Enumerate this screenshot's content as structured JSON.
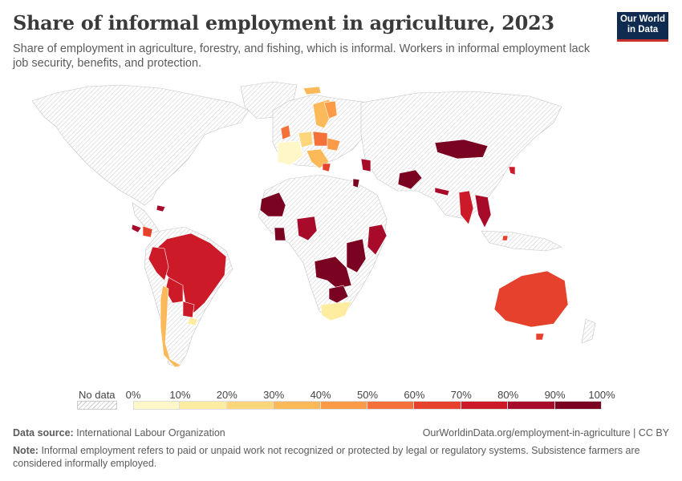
{
  "header": {
    "title": "Share of informal employment in agriculture, 2023",
    "subtitle": "Share of employment in agriculture, forestry, and fishing, which is informal. Workers in informal employment lack job security, benefits, and protection.",
    "logo_line1": "Our World",
    "logo_line2": "in Data"
  },
  "legend": {
    "nodata_label": "No data",
    "ticks": [
      "0%",
      "10%",
      "20%",
      "30%",
      "40%",
      "50%",
      "60%",
      "70%",
      "80%",
      "90%",
      "100%"
    ],
    "colors": [
      "#fff7c7",
      "#feeca0",
      "#fdd57a",
      "#fcb95a",
      "#fb9a47",
      "#f5713a",
      "#e6412d",
      "#cc1a28",
      "#a80b2a",
      "#7a0322"
    ]
  },
  "map_data": {
    "colors": {
      "nodata_fill": "#ffffff",
      "nodata_hatch": "#cfcfcf",
      "border": "#b9b9b9"
    },
    "regions": [
      {
        "name": "Brazil",
        "bin": 7
      },
      {
        "name": "Peru",
        "bin": 7
      },
      {
        "name": "Bolivia",
        "bin": 7
      },
      {
        "name": "Paraguay",
        "bin": 7
      },
      {
        "name": "Uruguay",
        "bin": 1
      },
      {
        "name": "Chile",
        "bin": 3
      },
      {
        "name": "Colombia",
        "bin": 6
      },
      {
        "name": "Costa Rica",
        "bin": 8
      },
      {
        "name": "Mali",
        "bin": 9
      },
      {
        "name": "Niger",
        "bin": 8
      },
      {
        "name": "Nigeria",
        "bin": 8
      },
      {
        "name": "Ghana",
        "bin": 9
      },
      {
        "name": "DR Congo",
        "bin": 9
      },
      {
        "name": "Tanzania",
        "bin": 9
      },
      {
        "name": "Zambia",
        "bin": 9
      },
      {
        "name": "Mozambique",
        "bin": 9
      },
      {
        "name": "Somalia",
        "bin": 8
      },
      {
        "name": "Zimbabwe",
        "bin": 9
      },
      {
        "name": "Lesotho",
        "bin": 8
      },
      {
        "name": "South Africa",
        "bin": 1
      },
      {
        "name": "Mongolia",
        "bin": 9
      },
      {
        "name": "Afghanistan",
        "bin": 9
      },
      {
        "name": "Myanmar",
        "bin": 7
      },
      {
        "name": "Vietnam",
        "bin": 8
      },
      {
        "name": "Australia",
        "bin": 6
      },
      {
        "name": "UK",
        "bin": 5
      },
      {
        "name": "Norway",
        "bin": 3
      },
      {
        "name": "Sweden",
        "bin": 3
      },
      {
        "name": "France",
        "bin": 0
      },
      {
        "name": "Spain",
        "bin": 1
      },
      {
        "name": "Poland",
        "bin": 5
      },
      {
        "name": "Ukraine",
        "bin": 4
      }
    ]
  },
  "footer": {
    "source_label": "Data source:",
    "source_value": "International Labour Organization",
    "url": "OurWorldinData.org/employment-in-agriculture | CC BY",
    "note_label": "Note:",
    "note_text": "Informal employment refers to paid or unpaid work not recognized or protected by legal or regulatory systems. Subsistence farmers are considered informally employed."
  }
}
